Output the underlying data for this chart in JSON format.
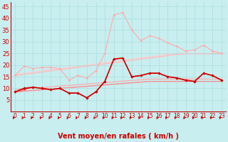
{
  "x": [
    0,
    1,
    2,
    3,
    4,
    5,
    6,
    7,
    8,
    9,
    10,
    11,
    12,
    13,
    14,
    15,
    16,
    17,
    18,
    19,
    20,
    21,
    22,
    23
  ],
  "bg_color": "#c8eef0",
  "grid_color": "#aadddd",
  "tick_color": "#cc0000",
  "arrow_color": "#cc0000",
  "xlabel": "Vent moyen/en rafales ( km/h )",
  "xlabel_color": "#cc0000",
  "xlabel_fontsize": 7,
  "ytick_fontsize": 6,
  "xtick_fontsize": 5.5,
  "ylim": [
    0,
    47
  ],
  "yticks": [
    5,
    10,
    15,
    20,
    25,
    30,
    35,
    40,
    45
  ],
  "series": [
    {
      "y": [
        16.0,
        16.5,
        17.0,
        17.5,
        18.0,
        18.5,
        19.0,
        19.5,
        20.0,
        20.5,
        21.0,
        21.5,
        22.0,
        22.5,
        23.0,
        23.5,
        24.0,
        24.5,
        25.0,
        25.0,
        25.0,
        25.0,
        25.0,
        25.0
      ],
      "color": "#ffcccc",
      "lw": 0.9,
      "marker": null,
      "ms": 0,
      "zorder": 1
    },
    {
      "y": [
        15.5,
        16.0,
        16.5,
        17.0,
        17.5,
        18.0,
        18.5,
        19.0,
        19.5,
        20.0,
        20.5,
        21.0,
        21.5,
        22.0,
        22.5,
        23.0,
        23.5,
        24.0,
        24.5,
        24.8,
        24.8,
        24.8,
        24.8,
        24.8
      ],
      "color": "#ffbbbb",
      "lw": 0.9,
      "marker": null,
      "ms": 0,
      "zorder": 1
    },
    {
      "y": [
        9.5,
        9.8,
        10.1,
        10.4,
        10.7,
        11.0,
        11.3,
        11.6,
        11.9,
        12.2,
        12.5,
        12.8,
        13.1,
        13.4,
        13.7,
        14.0,
        14.0,
        14.0,
        14.0,
        14.0,
        14.0,
        14.0,
        14.0,
        14.0
      ],
      "color": "#ffaaaa",
      "lw": 0.9,
      "marker": null,
      "ms": 0,
      "zorder": 1
    },
    {
      "y": [
        8.5,
        8.8,
        9.1,
        9.4,
        9.7,
        10.0,
        10.3,
        10.6,
        10.9,
        11.2,
        11.5,
        11.8,
        12.1,
        12.4,
        12.7,
        13.0,
        13.0,
        13.0,
        13.0,
        13.0,
        13.0,
        13.0,
        13.0,
        13.0
      ],
      "color": "#ff8888",
      "lw": 1.0,
      "marker": null,
      "ms": 0,
      "zorder": 1
    },
    {
      "y": [
        15.5,
        19.5,
        18.5,
        19.0,
        19.0,
        18.5,
        13.5,
        15.5,
        14.5,
        17.5,
        25.0,
        41.5,
        42.5,
        35.0,
        30.5,
        32.5,
        31.5,
        29.5,
        28.0,
        26.0,
        26.5,
        28.5,
        26.0,
        25.0
      ],
      "color": "#ffaaaa",
      "lw": 0.8,
      "marker": "D",
      "ms": 1.8,
      "zorder": 3
    },
    {
      "y": [
        8.5,
        9.5,
        10.5,
        10.0,
        9.5,
        10.0,
        8.0,
        8.0,
        6.0,
        8.5,
        13.0,
        22.5,
        23.0,
        15.0,
        15.5,
        16.5,
        16.5,
        15.0,
        14.5,
        13.5,
        13.0,
        16.5,
        15.5,
        13.5
      ],
      "color": "#ff5555",
      "lw": 0.8,
      "marker": "D",
      "ms": 1.8,
      "zorder": 3
    },
    {
      "y": [
        8.5,
        10.0,
        10.5,
        10.0,
        9.5,
        10.0,
        8.0,
        8.0,
        6.0,
        8.5,
        13.0,
        22.5,
        23.0,
        15.0,
        15.5,
        16.5,
        16.5,
        15.0,
        14.5,
        13.5,
        13.0,
        16.5,
        15.5,
        13.5
      ],
      "color": "#cc0000",
      "lw": 1.2,
      "marker": "D",
      "ms": 2.2,
      "zorder": 4
    }
  ]
}
